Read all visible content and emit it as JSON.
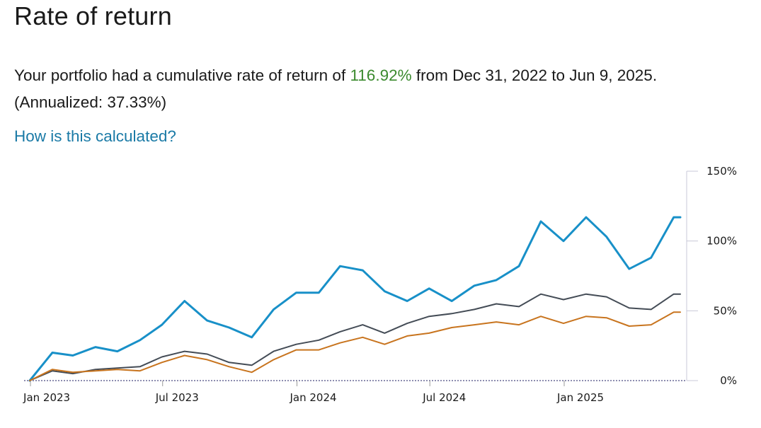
{
  "header": {
    "title": "Rate of return"
  },
  "summary": {
    "prefix": "Your portfolio had a cumulative rate of return of ",
    "cumulative_return": "116.92%",
    "middle": " from Dec 31, 2022 to Jun 9, 2025. (Annualized: 37.33%)"
  },
  "help_link": {
    "label": "How is this calculated?"
  },
  "colors": {
    "positive_text": "#3b8a2e",
    "link": "#1a7aa6",
    "portfolio_line": "#1890c8",
    "benchmark_dark_line": "#444c56",
    "benchmark_orange_line": "#c8741e",
    "zero_line": "#8e8eb0",
    "axis": "#c8c8d8"
  },
  "chart_data": {
    "type": "line",
    "title": "",
    "xlabel": "",
    "ylabel": "",
    "y_axis_position": "right",
    "ylim": [
      0,
      150
    ],
    "y_ticks": [
      {
        "value": 0,
        "label": "0%"
      },
      {
        "value": 50,
        "label": "50%"
      },
      {
        "value": 100,
        "label": "100%"
      },
      {
        "value": 150,
        "label": "150%"
      }
    ],
    "x_range": [
      "2022-12-31",
      "2025-06-09"
    ],
    "x_ticks": [
      {
        "date": "2023-01-01",
        "label": "Jan 2023"
      },
      {
        "date": "2023-07-01",
        "label": "Jul 2023"
      },
      {
        "date": "2024-01-01",
        "label": "Jan 2024"
      },
      {
        "date": "2024-07-01",
        "label": "Jul 2024"
      },
      {
        "date": "2025-01-01",
        "label": "Jan 2025"
      }
    ],
    "grid": false,
    "dates": [
      "2022-12-31",
      "2023-01-31",
      "2023-02-28",
      "2023-03-31",
      "2023-04-30",
      "2023-05-31",
      "2023-06-30",
      "2023-07-31",
      "2023-08-31",
      "2023-09-30",
      "2023-10-31",
      "2023-11-30",
      "2023-12-31",
      "2024-01-31",
      "2024-02-29",
      "2024-03-31",
      "2024-04-30",
      "2024-05-31",
      "2024-06-30",
      "2024-07-31",
      "2024-08-31",
      "2024-09-30",
      "2024-10-31",
      "2024-11-30",
      "2024-12-31",
      "2025-01-31",
      "2025-02-28",
      "2025-03-31",
      "2025-04-30",
      "2025-05-31",
      "2025-06-09"
    ],
    "series": [
      {
        "color": "#1890c8",
        "values": [
          0,
          20,
          18,
          24,
          21,
          29,
          40,
          57,
          43,
          38,
          31,
          51,
          63,
          63,
          82,
          79,
          64,
          57,
          66,
          57,
          68,
          72,
          82,
          114,
          100,
          117,
          103,
          80,
          88,
          117,
          117
        ]
      },
      {
        "color": "#444c56",
        "values": [
          0,
          7,
          5,
          8,
          9,
          10,
          17,
          21,
          19,
          13,
          11,
          21,
          26,
          29,
          35,
          40,
          34,
          41,
          46,
          48,
          51,
          55,
          53,
          62,
          58,
          62,
          60,
          52,
          51,
          62,
          62
        ]
      },
      {
        "color": "#c8741e",
        "values": [
          0,
          8,
          6,
          7,
          8,
          7,
          13,
          18,
          15,
          10,
          6,
          15,
          22,
          22,
          27,
          31,
          26,
          32,
          34,
          38,
          40,
          42,
          40,
          46,
          41,
          46,
          45,
          39,
          40,
          49,
          49
        ]
      }
    ]
  }
}
